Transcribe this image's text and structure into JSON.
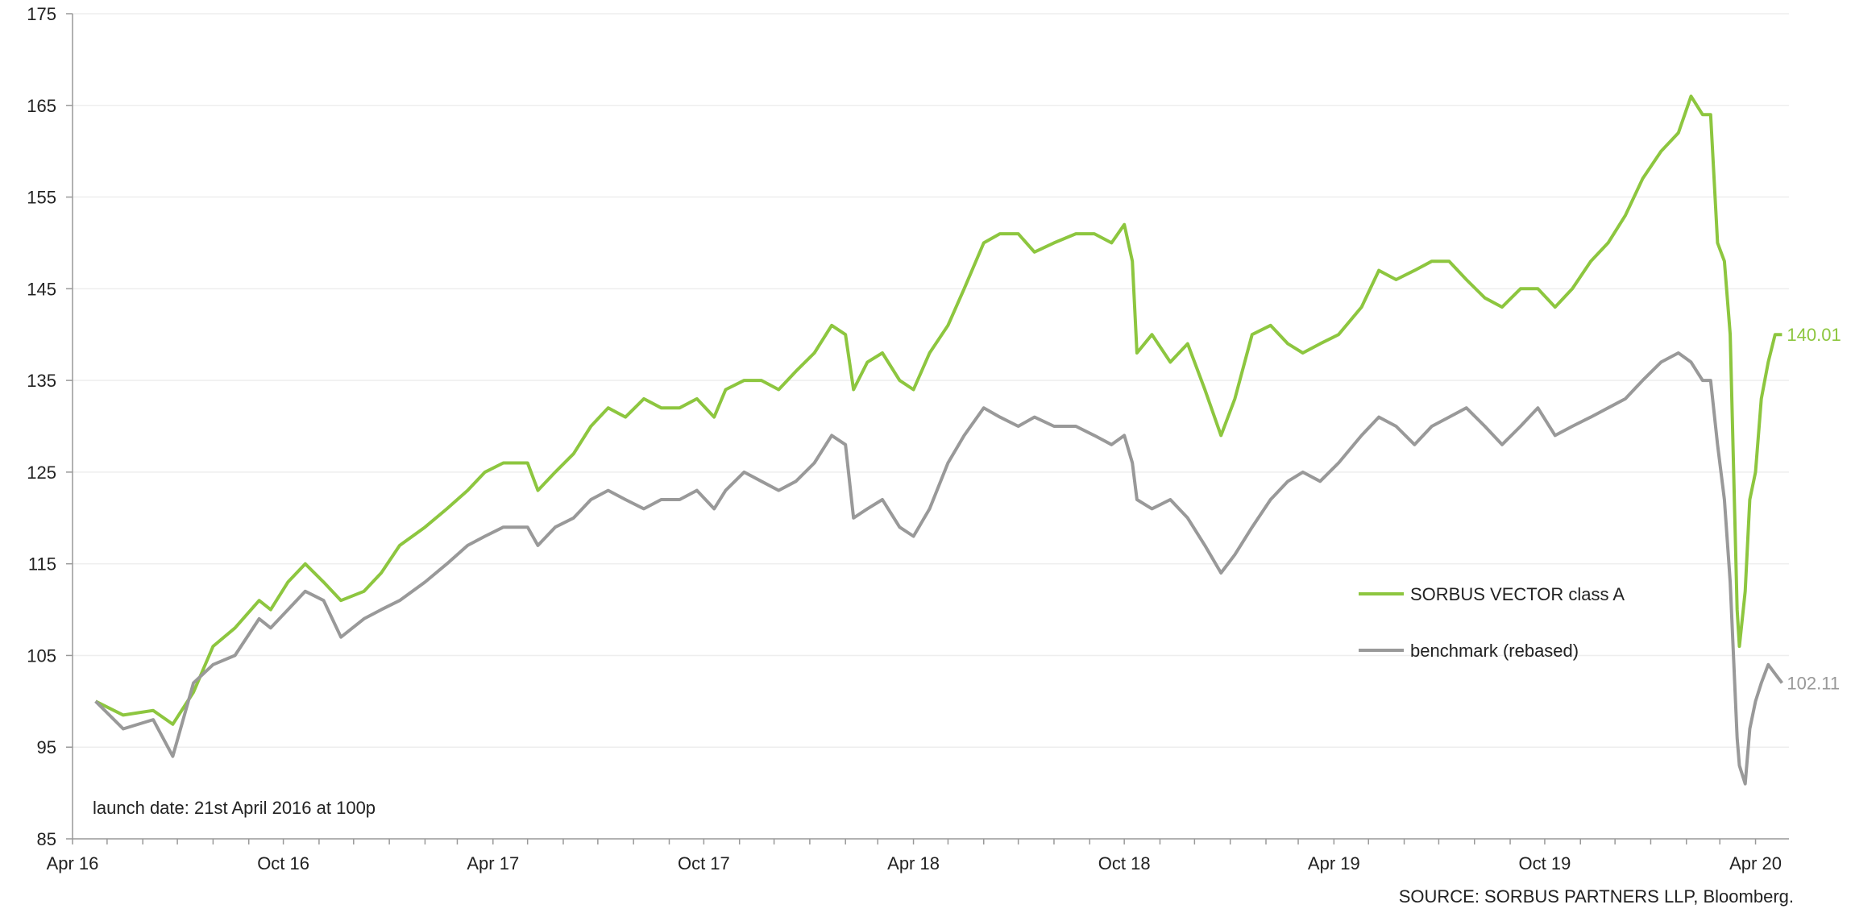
{
  "chart_data": {
    "type": "line",
    "title": "",
    "xlabel": "",
    "ylabel": "",
    "ylim": [
      85,
      175
    ],
    "yticks": [
      85,
      95,
      105,
      115,
      125,
      135,
      145,
      155,
      165,
      175
    ],
    "x_tick_labels": [
      "Apr 16",
      "Oct 16",
      "Apr 17",
      "Oct 17",
      "Apr 18",
      "Oct 18",
      "Apr 19",
      "Oct 19",
      "Apr 20"
    ],
    "grid": "horizontal",
    "legend_position": "right",
    "annotation": "launch date: 21st April 2016 at 100p",
    "source": "SOURCE: SORBUS PARTNERS LLP, Bloomberg.",
    "series": [
      {
        "name": "SORBUS VECTOR class A",
        "color": "#8dc63f",
        "end_label": "140.01",
        "points": [
          [
            "2016-04-21",
            100
          ],
          [
            "2016-05-15",
            98.5
          ],
          [
            "2016-06-10",
            99
          ],
          [
            "2016-06-27",
            97.5
          ],
          [
            "2016-07-15",
            101
          ],
          [
            "2016-08-01",
            106
          ],
          [
            "2016-08-20",
            108
          ],
          [
            "2016-09-10",
            111
          ],
          [
            "2016-09-20",
            110
          ],
          [
            "2016-10-05",
            113
          ],
          [
            "2016-10-20",
            115
          ],
          [
            "2016-11-05",
            113
          ],
          [
            "2016-11-20",
            111
          ],
          [
            "2016-12-10",
            112
          ],
          [
            "2016-12-25",
            114
          ],
          [
            "2017-01-10",
            117
          ],
          [
            "2017-02-01",
            119
          ],
          [
            "2017-02-20",
            121
          ],
          [
            "2017-03-10",
            123
          ],
          [
            "2017-03-25",
            125
          ],
          [
            "2017-04-10",
            126
          ],
          [
            "2017-05-01",
            126
          ],
          [
            "2017-05-10",
            123
          ],
          [
            "2017-05-25",
            125
          ],
          [
            "2017-06-10",
            127
          ],
          [
            "2017-06-25",
            130
          ],
          [
            "2017-07-10",
            132
          ],
          [
            "2017-07-25",
            131
          ],
          [
            "2017-08-10",
            133
          ],
          [
            "2017-08-25",
            132
          ],
          [
            "2017-09-10",
            132
          ],
          [
            "2017-09-25",
            133
          ],
          [
            "2017-10-10",
            131
          ],
          [
            "2017-10-20",
            134
          ],
          [
            "2017-11-05",
            135
          ],
          [
            "2017-11-20",
            135
          ],
          [
            "2017-12-05",
            134
          ],
          [
            "2017-12-20",
            136
          ],
          [
            "2018-01-05",
            138
          ],
          [
            "2018-01-20",
            141
          ],
          [
            "2018-02-01",
            140
          ],
          [
            "2018-02-08",
            134
          ],
          [
            "2018-02-20",
            137
          ],
          [
            "2018-03-05",
            138
          ],
          [
            "2018-03-20",
            135
          ],
          [
            "2018-04-01",
            134
          ],
          [
            "2018-04-15",
            138
          ],
          [
            "2018-05-01",
            141
          ],
          [
            "2018-05-15",
            145
          ],
          [
            "2018-06-01",
            150
          ],
          [
            "2018-06-15",
            151
          ],
          [
            "2018-07-01",
            151
          ],
          [
            "2018-07-15",
            149
          ],
          [
            "2018-08-01",
            150
          ],
          [
            "2018-08-20",
            151
          ],
          [
            "2018-09-05",
            151
          ],
          [
            "2018-09-20",
            150
          ],
          [
            "2018-10-01",
            152
          ],
          [
            "2018-10-08",
            148
          ],
          [
            "2018-10-12",
            138
          ],
          [
            "2018-10-25",
            140
          ],
          [
            "2018-11-10",
            137
          ],
          [
            "2018-11-25",
            139
          ],
          [
            "2018-12-10",
            134
          ],
          [
            "2018-12-24",
            129
          ],
          [
            "2019-01-05",
            133
          ],
          [
            "2019-01-20",
            140
          ],
          [
            "2019-02-05",
            141
          ],
          [
            "2019-02-20",
            139
          ],
          [
            "2019-03-05",
            138
          ],
          [
            "2019-03-20",
            139
          ],
          [
            "2019-04-05",
            140
          ],
          [
            "2019-04-25",
            143
          ],
          [
            "2019-05-10",
            147
          ],
          [
            "2019-05-25",
            146
          ],
          [
            "2019-06-10",
            147
          ],
          [
            "2019-06-25",
            148
          ],
          [
            "2019-07-10",
            148
          ],
          [
            "2019-07-25",
            146
          ],
          [
            "2019-08-10",
            144
          ],
          [
            "2019-08-25",
            143
          ],
          [
            "2019-09-10",
            145
          ],
          [
            "2019-09-25",
            145
          ],
          [
            "2019-10-10",
            143
          ],
          [
            "2019-10-25",
            145
          ],
          [
            "2019-11-10",
            148
          ],
          [
            "2019-11-25",
            150
          ],
          [
            "2019-12-10",
            153
          ],
          [
            "2019-12-25",
            157
          ],
          [
            "2020-01-10",
            160
          ],
          [
            "2020-01-25",
            162
          ],
          [
            "2020-02-05",
            166
          ],
          [
            "2020-02-15",
            164
          ],
          [
            "2020-02-22",
            164
          ],
          [
            "2020-02-28",
            150
          ],
          [
            "2020-03-05",
            148
          ],
          [
            "2020-03-10",
            140
          ],
          [
            "2020-03-16",
            110
          ],
          [
            "2020-03-18",
            106
          ],
          [
            "2020-03-23",
            112
          ],
          [
            "2020-03-27",
            122
          ],
          [
            "2020-04-01",
            125
          ],
          [
            "2020-04-06",
            133
          ],
          [
            "2020-04-12",
            137
          ],
          [
            "2020-04-18",
            140
          ],
          [
            "2020-04-24",
            140
          ]
        ]
      },
      {
        "name": "benchmark (rebased)",
        "color": "#999999",
        "end_label": "102.11",
        "points": [
          [
            "2016-04-21",
            100
          ],
          [
            "2016-05-15",
            97
          ],
          [
            "2016-06-10",
            98
          ],
          [
            "2016-06-27",
            94
          ],
          [
            "2016-07-15",
            102
          ],
          [
            "2016-08-01",
            104
          ],
          [
            "2016-08-20",
            105
          ],
          [
            "2016-09-10",
            109
          ],
          [
            "2016-09-20",
            108
          ],
          [
            "2016-10-05",
            110
          ],
          [
            "2016-10-20",
            112
          ],
          [
            "2016-11-05",
            111
          ],
          [
            "2016-11-20",
            107
          ],
          [
            "2016-12-10",
            109
          ],
          [
            "2016-12-25",
            110
          ],
          [
            "2017-01-10",
            111
          ],
          [
            "2017-02-01",
            113
          ],
          [
            "2017-02-20",
            115
          ],
          [
            "2017-03-10",
            117
          ],
          [
            "2017-03-25",
            118
          ],
          [
            "2017-04-10",
            119
          ],
          [
            "2017-05-01",
            119
          ],
          [
            "2017-05-10",
            117
          ],
          [
            "2017-05-25",
            119
          ],
          [
            "2017-06-10",
            120
          ],
          [
            "2017-06-25",
            122
          ],
          [
            "2017-07-10",
            123
          ],
          [
            "2017-07-25",
            122
          ],
          [
            "2017-08-10",
            121
          ],
          [
            "2017-08-25",
            122
          ],
          [
            "2017-09-10",
            122
          ],
          [
            "2017-09-25",
            123
          ],
          [
            "2017-10-10",
            121
          ],
          [
            "2017-10-20",
            123
          ],
          [
            "2017-11-05",
            125
          ],
          [
            "2017-11-20",
            124
          ],
          [
            "2017-12-05",
            123
          ],
          [
            "2017-12-20",
            124
          ],
          [
            "2018-01-05",
            126
          ],
          [
            "2018-01-20",
            129
          ],
          [
            "2018-02-01",
            128
          ],
          [
            "2018-02-08",
            120
          ],
          [
            "2018-02-20",
            121
          ],
          [
            "2018-03-05",
            122
          ],
          [
            "2018-03-20",
            119
          ],
          [
            "2018-04-01",
            118
          ],
          [
            "2018-04-15",
            121
          ],
          [
            "2018-05-01",
            126
          ],
          [
            "2018-05-15",
            129
          ],
          [
            "2018-06-01",
            132
          ],
          [
            "2018-06-15",
            131
          ],
          [
            "2018-07-01",
            130
          ],
          [
            "2018-07-15",
            131
          ],
          [
            "2018-08-01",
            130
          ],
          [
            "2018-08-20",
            130
          ],
          [
            "2018-09-05",
            129
          ],
          [
            "2018-09-20",
            128
          ],
          [
            "2018-10-01",
            129
          ],
          [
            "2018-10-08",
            126
          ],
          [
            "2018-10-12",
            122
          ],
          [
            "2018-10-25",
            121
          ],
          [
            "2018-11-10",
            122
          ],
          [
            "2018-11-25",
            120
          ],
          [
            "2018-12-10",
            117
          ],
          [
            "2018-12-24",
            114
          ],
          [
            "2019-01-05",
            116
          ],
          [
            "2019-01-20",
            119
          ],
          [
            "2019-02-05",
            122
          ],
          [
            "2019-02-20",
            124
          ],
          [
            "2019-03-05",
            125
          ],
          [
            "2019-03-20",
            124
          ],
          [
            "2019-04-05",
            126
          ],
          [
            "2019-04-25",
            129
          ],
          [
            "2019-05-10",
            131
          ],
          [
            "2019-05-25",
            130
          ],
          [
            "2019-06-10",
            128
          ],
          [
            "2019-06-25",
            130
          ],
          [
            "2019-07-10",
            131
          ],
          [
            "2019-07-25",
            132
          ],
          [
            "2019-08-10",
            130
          ],
          [
            "2019-08-25",
            128
          ],
          [
            "2019-09-10",
            130
          ],
          [
            "2019-09-25",
            132
          ],
          [
            "2019-10-10",
            129
          ],
          [
            "2019-10-25",
            130
          ],
          [
            "2019-11-10",
            131
          ],
          [
            "2019-11-25",
            132
          ],
          [
            "2019-12-10",
            133
          ],
          [
            "2019-12-25",
            135
          ],
          [
            "2020-01-10",
            137
          ],
          [
            "2020-01-25",
            138
          ],
          [
            "2020-02-05",
            137
          ],
          [
            "2020-02-15",
            135
          ],
          [
            "2020-02-22",
            135
          ],
          [
            "2020-02-28",
            128
          ],
          [
            "2020-03-05",
            122
          ],
          [
            "2020-03-10",
            113
          ],
          [
            "2020-03-16",
            96
          ],
          [
            "2020-03-18",
            93
          ],
          [
            "2020-03-23",
            91
          ],
          [
            "2020-03-27",
            97
          ],
          [
            "2020-04-01",
            100
          ],
          [
            "2020-04-06",
            102
          ],
          [
            "2020-04-12",
            104
          ],
          [
            "2020-04-18",
            103
          ],
          [
            "2020-04-24",
            102
          ]
        ]
      }
    ]
  }
}
